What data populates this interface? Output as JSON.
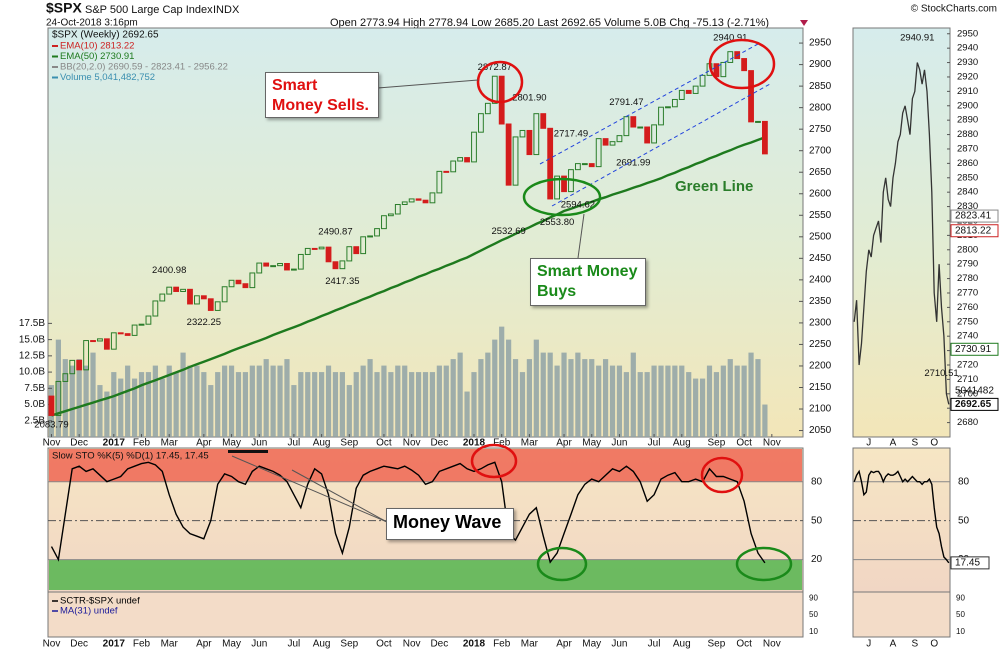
{
  "header": {
    "symbol": "$SPX",
    "name": "S&P 500 Large Cap Index",
    "exchange": "INDX",
    "date": "24-Oct-2018 3:16pm",
    "quote": "Open 2773.94 High 2778.94 Low 2685.20 Last 2692.65 Volume 5.0B Chg -75.13 (-2.71%)",
    "credit": "© StockCharts.com"
  },
  "annotations": {
    "sells": "Smart Money Sells.",
    "buys": "Smart Money Buys",
    "green_line": "Green Line",
    "money_wave": "Money Wave"
  },
  "chart_data": [
    {
      "type": "candlestick",
      "title": "$SPX (Weekly) 2692.65",
      "categories": [
        "Nov",
        null,
        null,
        null,
        "Dec",
        null,
        null,
        null,
        null,
        "2017",
        null,
        null,
        null,
        "Feb",
        null,
        null,
        null,
        "Mar",
        null,
        null,
        null,
        null,
        "Apr",
        null,
        null,
        null,
        "May",
        null,
        null,
        null,
        "Jun",
        null,
        null,
        null,
        null,
        "Jul",
        null,
        null,
        null,
        "Aug",
        null,
        null,
        null,
        "Sep",
        null,
        null,
        null,
        null,
        "Oct",
        null,
        null,
        null,
        "Nov",
        null,
        null,
        null,
        "Dec",
        null,
        null,
        null,
        null,
        "2018",
        null,
        null,
        null,
        "Feb",
        null,
        null,
        null,
        "Mar",
        null,
        null,
        null,
        null,
        "Apr",
        null,
        null,
        null,
        "May",
        null,
        null,
        null,
        "Jun",
        null,
        null,
        null,
        null,
        "Jul",
        null,
        null,
        null,
        "Aug",
        null,
        null,
        null,
        null,
        "Sep",
        null,
        null,
        null,
        "Oct",
        null,
        null,
        null,
        "Nov",
        null,
        null,
        null,
        null
      ],
      "open": [
        2130,
        2085,
        2164,
        2182,
        2213,
        2191,
        2259,
        2258,
        2263,
        2239,
        2277,
        2275,
        2271,
        2295,
        2297,
        2316,
        2351,
        2367,
        2383,
        2373,
        2378,
        2344,
        2363,
        2356,
        2329,
        2349,
        2384,
        2399,
        2391,
        2382,
        2416,
        2439,
        2432,
        2433,
        2438,
        2423,
        2425,
        2459,
        2473,
        2472,
        2476,
        2442,
        2426,
        2444,
        2477,
        2461,
        2500,
        2502,
        2519,
        2549,
        2553,
        2575,
        2581,
        2588,
        2585,
        2579,
        2602,
        2652,
        2651,
        2676,
        2684,
        2674,
        2743,
        2786,
        2810,
        2873,
        2762,
        2620,
        2732,
        2747,
        2691,
        2786,
        2752,
        2588,
        2641,
        2605,
        2656,
        2670,
        2670,
        2663,
        2728,
        2713,
        2721,
        2735,
        2779,
        2755,
        2755,
        2718,
        2760,
        2801,
        2802,
        2819,
        2840,
        2833,
        2850,
        2875,
        2902,
        2872,
        2905,
        2930,
        2914,
        2886,
        2767,
        2768,
        null,
        null,
        null,
        null,
        null
      ],
      "close": [
        2085,
        2164,
        2182,
        2213,
        2191,
        2259,
        2258,
        2263,
        2239,
        2277,
        2275,
        2271,
        2295,
        2297,
        2316,
        2351,
        2367,
        2383,
        2373,
        2378,
        2344,
        2363,
        2356,
        2329,
        2349,
        2384,
        2399,
        2391,
        2382,
        2416,
        2439,
        2432,
        2433,
        2438,
        2423,
        2425,
        2459,
        2473,
        2472,
        2476,
        2442,
        2426,
        2444,
        2477,
        2461,
        2500,
        2502,
        2519,
        2549,
        2553,
        2575,
        2581,
        2588,
        2585,
        2579,
        2602,
        2652,
        2651,
        2676,
        2684,
        2674,
        2743,
        2786,
        2810,
        2873,
        2762,
        2620,
        2732,
        2747,
        2691,
        2786,
        2752,
        2588,
        2641,
        2605,
        2656,
        2670,
        2670,
        2663,
        2728,
        2713,
        2721,
        2735,
        2779,
        2755,
        2755,
        2718,
        2760,
        2801,
        2802,
        2819,
        2840,
        2833,
        2850,
        2875,
        2902,
        2872,
        2905,
        2930,
        2914,
        2886,
        2767,
        2768,
        2692.65,
        null,
        null,
        null,
        null,
        null
      ],
      "ema50": [
        2085,
        2090,
        2095,
        2100,
        2105,
        2110,
        2115,
        2120,
        2125,
        2130,
        2136,
        2142,
        2148,
        2155,
        2161,
        2167,
        2173,
        2179,
        2185,
        2191,
        2198,
        2204,
        2210,
        2216,
        2222,
        2228,
        2235,
        2241,
        2247,
        2253,
        2259,
        2265,
        2272,
        2278,
        2284,
        2290,
        2296,
        2303,
        2309,
        2316,
        2322,
        2329,
        2335,
        2342,
        2348,
        2355,
        2361,
        2368,
        2374,
        2381,
        2387,
        2394,
        2400,
        2407,
        2413,
        2420,
        2426,
        2433,
        2439,
        2446,
        2452,
        2460,
        2468,
        2476,
        2484,
        2492,
        2499,
        2507,
        2515,
        2522,
        2530,
        2537,
        2545,
        2552,
        2560,
        2565,
        2571,
        2576,
        2581,
        2587,
        2592,
        2598,
        2603,
        2608,
        2614,
        2619,
        2625,
        2630,
        2636,
        2643,
        2649,
        2656,
        2662,
        2669,
        2675,
        2682,
        2688,
        2695,
        2701,
        2708,
        2714,
        2719,
        2725,
        2731,
        null,
        null,
        null,
        null,
        null
      ],
      "up_color": "#2a7d2a",
      "down_color": "#d41c1c",
      "ylim": [
        2035,
        2985
      ],
      "yticks": [
        2050,
        2100,
        2150,
        2200,
        2250,
        2300,
        2350,
        2400,
        2450,
        2500,
        2550,
        2600,
        2650,
        2700,
        2750,
        2800,
        2850,
        2900,
        2950
      ],
      "price_labels": [
        2083.79,
        2400.98,
        2322.25,
        2490.87,
        2417.35,
        2872.87,
        2532.69,
        {
          "value": 2801.9,
          "label": "2801.90"
        },
        {
          "value": 2553.8,
          "label": "2553.80"
        },
        2717.49,
        2594.62,
        2791.47,
        2691.99,
        2940.91
      ],
      "legend": [
        {
          "text": "EMA(10) 2813.22",
          "color": "#cc2222"
        },
        {
          "text": "EMA(50) 2730.91",
          "color": "#1e7a1e"
        },
        {
          "text": "BB(20,2.0) 2690.59 - 2823.41 - 2956.22",
          "color": "#888888"
        },
        {
          "text": "Volume 5,041,482,752",
          "color": "#3a8fb0"
        }
      ],
      "volume": {
        "color": "#8fa2a6",
        "ylim": [
          0,
          63
        ],
        "values": [
          8,
          15,
          12,
          11,
          12,
          11,
          13,
          8,
          7,
          10,
          9,
          11,
          9,
          10,
          10,
          11,
          9,
          11,
          10,
          13,
          11,
          11,
          10,
          8,
          10,
          11,
          11,
          10,
          10,
          11,
          11,
          12,
          11,
          11,
          12,
          8,
          10,
          10,
          10,
          10,
          11,
          10,
          10,
          8,
          10,
          11,
          12,
          10,
          11,
          10,
          11,
          11,
          10,
          10,
          10,
          10,
          11,
          11,
          12,
          13,
          7,
          10,
          12,
          13,
          15,
          17,
          15,
          12,
          10,
          12,
          15,
          13,
          13,
          11,
          13,
          12,
          13,
          12,
          12,
          11,
          12,
          11,
          11,
          10,
          13,
          10,
          10,
          11,
          11,
          11,
          11,
          11,
          10,
          9,
          9,
          11,
          10,
          11,
          12,
          11,
          11,
          13,
          12,
          5,
          null,
          null,
          null,
          null,
          null
        ],
        "yticks": [
          {
            "value": 2.5,
            "label": "2.5B"
          },
          {
            "value": 5,
            "label": "5.0B"
          },
          {
            "value": 7.5,
            "label": "7.5B"
          },
          {
            "value": 10,
            "label": "10.0B"
          },
          {
            "value": 12.5,
            "label": "12.5B"
          },
          {
            "value": 15,
            "label": "15.0B"
          },
          {
            "value": 17.5,
            "label": "17.5B"
          }
        ]
      }
    },
    {
      "type": "line",
      "title": "Slow STO %K(5) %D(1) 17.45, 17.45",
      "color": "#000000",
      "values": [
        30,
        20,
        55,
        90,
        92,
        88,
        90,
        85,
        80,
        82,
        84,
        90,
        92,
        94,
        95,
        93,
        88,
        70,
        55,
        45,
        40,
        38,
        36,
        50,
        78,
        86,
        84,
        80,
        78,
        88,
        92,
        90,
        88,
        85,
        80,
        70,
        60,
        78,
        90,
        86,
        70,
        40,
        25,
        45,
        75,
        85,
        88,
        90,
        92,
        91,
        90,
        92,
        89,
        85,
        78,
        80,
        88,
        90,
        92,
        94,
        90,
        88,
        90,
        93,
        95,
        80,
        40,
        35,
        45,
        55,
        60,
        38,
        18,
        25,
        40,
        55,
        70,
        78,
        82,
        80,
        85,
        90,
        88,
        92,
        88,
        80,
        65,
        70,
        82,
        85,
        87,
        80,
        80,
        82,
        80,
        90,
        84,
        84,
        82,
        80,
        65,
        40,
        25,
        17.45,
        null,
        null,
        null,
        null,
        null
      ],
      "ylim": [
        -5,
        106
      ],
      "yticks": [
        20,
        50,
        80
      ],
      "zone_colors": [
        "#3fb03f",
        "#ee5544"
      ]
    },
    {
      "type": "line",
      "series": [
        {
          "name": "SCTR-$SPX undef",
          "color": "#000000",
          "values": []
        },
        {
          "name": "MA(31) undef",
          "color": "#1a1a9a",
          "values": []
        }
      ],
      "ylim": [
        0,
        100
      ],
      "yticks": [
        10,
        50,
        90
      ]
    },
    {
      "type": "line",
      "color": "#333333",
      "categories": [
        null,
        null,
        null,
        null,
        null,
        null,
        "J",
        null,
        null,
        null,
        null,
        null,
        null,
        null,
        null,
        null,
        "A",
        null,
        null,
        null,
        null,
        null,
        null,
        null,
        null,
        "S",
        null,
        null,
        null,
        null,
        null,
        null,
        null,
        "O",
        null,
        null,
        null,
        null,
        null,
        null
      ],
      "values": [
        2750,
        2765,
        2720,
        2735,
        2760,
        2785,
        2800,
        2795,
        2810,
        2815,
        2820,
        2805,
        2840,
        2850,
        2835,
        2830,
        2850,
        2860,
        2875,
        2880,
        2895,
        2900,
        2890,
        2880,
        2905,
        2910,
        2930,
        2925,
        2915,
        2925,
        2910,
        2880,
        2840,
        2770,
        2750,
        2790,
        2760,
        2740,
        2700,
        2692.65
      ],
      "ylim": [
        2670,
        2954
      ],
      "yticks": [
        2680,
        2690,
        2700,
        2710,
        2720,
        2730,
        2740,
        2750,
        2760,
        2770,
        2780,
        2790,
        2800,
        2810,
        2820,
        2830,
        2840,
        2850,
        2860,
        2870,
        2880,
        2890,
        2900,
        2910,
        2920,
        2930,
        2940,
        2950
      ],
      "price_labels": [
        2940.91,
        2710.51
      ],
      "price_tags": [
        {
          "value": 2823.41,
          "color": "#888888"
        },
        {
          "value": 2813.22,
          "color": "#cc2222"
        },
        {
          "value": 2730.91,
          "color": "#1e7a1e"
        },
        {
          "value": 2692.65,
          "color": "#000000"
        }
      ],
      "volume_tag": 5041482
    },
    {
      "type": "line",
      "color": "#000000",
      "values": [
        80,
        85,
        88,
        80,
        70,
        72,
        85,
        88,
        87,
        88,
        88,
        85,
        80,
        84,
        86,
        85,
        85,
        86,
        88,
        84,
        80,
        82,
        80,
        82,
        84,
        82,
        80,
        80,
        78,
        80,
        80,
        82,
        78,
        60,
        45,
        40,
        30,
        22,
        20,
        17.45
      ],
      "ylim": [
        -5,
        106
      ],
      "yticks": [
        20,
        50,
        80
      ],
      "tag": 17.45
    }
  ]
}
